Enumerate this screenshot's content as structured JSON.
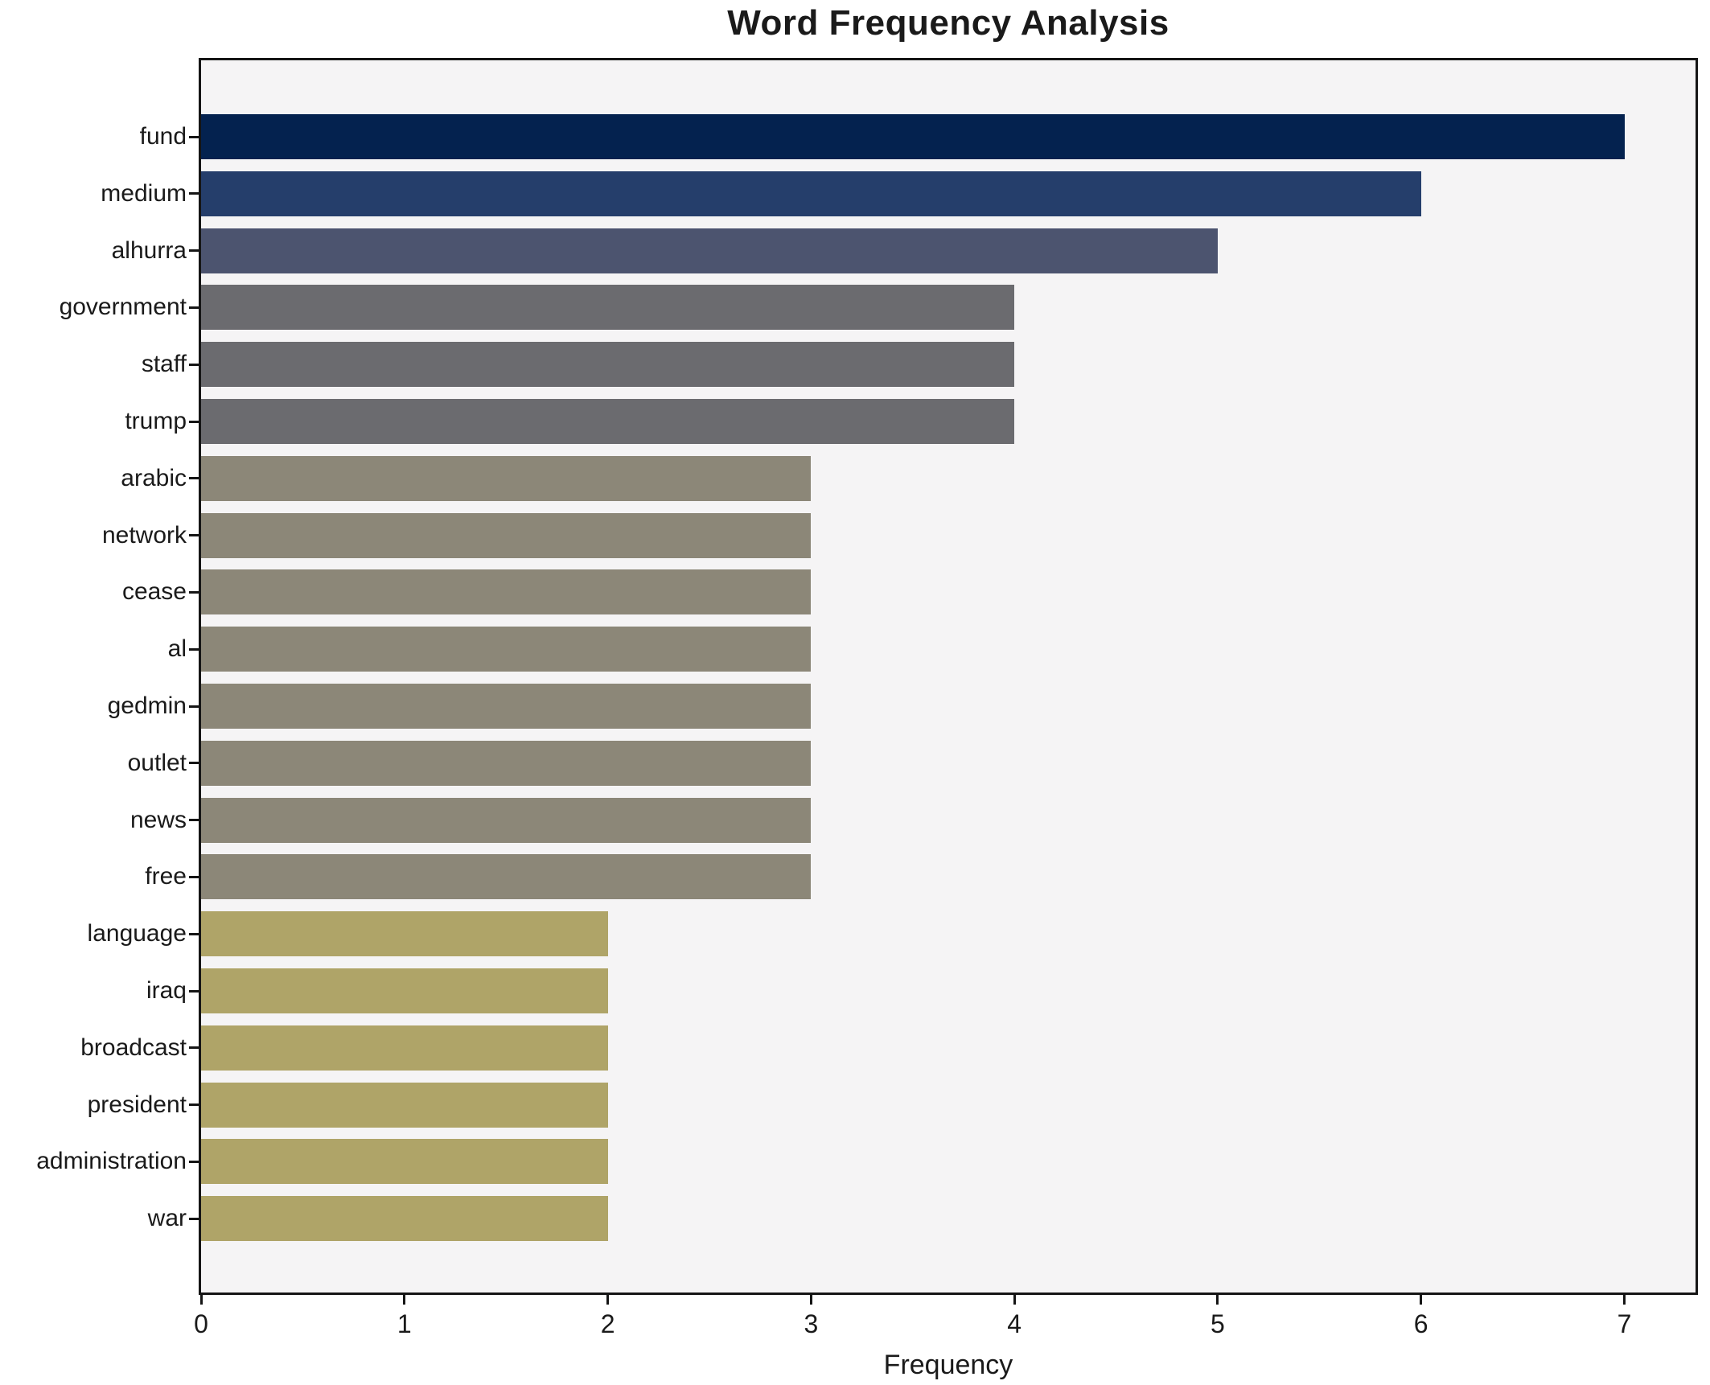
{
  "chart_data": {
    "type": "bar",
    "orientation": "horizontal",
    "title": "Word Frequency Analysis",
    "xlabel": "Frequency",
    "ylabel": "",
    "categories": [
      "fund",
      "medium",
      "alhurra",
      "government",
      "staff",
      "trump",
      "arabic",
      "network",
      "cease",
      "al",
      "gedmin",
      "outlet",
      "news",
      "free",
      "language",
      "iraq",
      "broadcast",
      "president",
      "administration",
      "war"
    ],
    "values": [
      7,
      6,
      5,
      4,
      4,
      4,
      3,
      3,
      3,
      3,
      3,
      3,
      3,
      3,
      2,
      2,
      2,
      2,
      2,
      2
    ],
    "xticks": [
      "0",
      "1",
      "2",
      "3",
      "4",
      "5",
      "6",
      "7"
    ],
    "xlim": [
      0,
      7.35
    ],
    "grid": false,
    "legend": false,
    "color_by_value": {
      "7": "#04224F",
      "6": "#253E6B",
      "5": "#4C546F",
      "4": "#6B6B6F",
      "3": "#8C8778",
      "2": "#AFA468"
    },
    "colors": {
      "plot_background": "#F5F4F5",
      "figure_background": "#FFFFFF",
      "axis": "#151515",
      "text": "#1A1A1A"
    }
  }
}
